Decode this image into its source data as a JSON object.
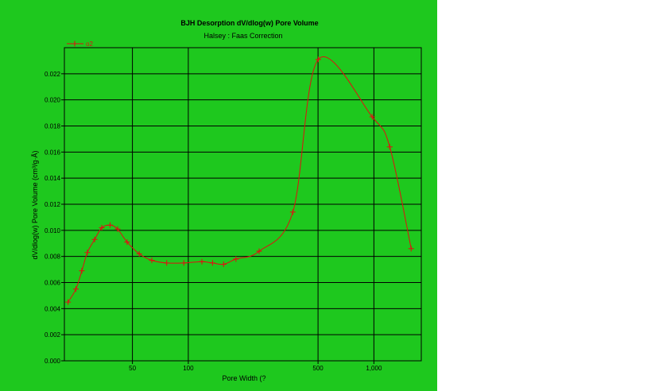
{
  "colors": {
    "background": "#1ec81e",
    "series": "#e01010",
    "grid": "#000000",
    "page": "#ffffff"
  },
  "chart_data": {
    "type": "line",
    "title": "BJH Desorption dV/dlog(w) Pore Volume",
    "subtitle": "Halsey : Faas Correction",
    "xlabel": "Pore Width (?",
    "ylabel": "dV/dlog(w) Pore Volume (cm³/g·Å)",
    "x_scale": "log",
    "xlim": [
      21.5,
      1800
    ],
    "ylim": [
      0,
      0.024
    ],
    "x_ticks": [
      {
        "value": 50,
        "label": "50"
      },
      {
        "value": 100,
        "label": "100"
      },
      {
        "value": 500,
        "label": "500"
      },
      {
        "value": 1000,
        "label": "1,000"
      }
    ],
    "x_grid": [
      50,
      100,
      500,
      1000
    ],
    "y_ticks": [
      {
        "value": 0.0,
        "label": "0.000"
      },
      {
        "value": 0.002,
        "label": "0.002"
      },
      {
        "value": 0.004,
        "label": "0.004"
      },
      {
        "value": 0.006,
        "label": "0.006"
      },
      {
        "value": 0.008,
        "label": "0.008"
      },
      {
        "value": 0.01,
        "label": "0.010"
      },
      {
        "value": 0.012,
        "label": "0.012"
      },
      {
        "value": 0.014,
        "label": "0.014"
      },
      {
        "value": 0.016,
        "label": "0.016"
      },
      {
        "value": 0.018,
        "label": "0.018"
      },
      {
        "value": 0.02,
        "label": "0.020"
      },
      {
        "value": 0.022,
        "label": "0.022"
      }
    ],
    "grid": true,
    "legend_position": "top-left",
    "series": [
      {
        "name": "o2",
        "points": [
          [
            22.5,
            0.0045
          ],
          [
            24.8,
            0.0055
          ],
          [
            26.7,
            0.0069
          ],
          [
            28.6,
            0.0083
          ],
          [
            31.3,
            0.0093
          ],
          [
            34.2,
            0.0102
          ],
          [
            37.9,
            0.0104
          ],
          [
            41.6,
            0.0101
          ],
          [
            46.8,
            0.0091
          ],
          [
            54.4,
            0.0082
          ],
          [
            63.6,
            0.0077
          ],
          [
            76.5,
            0.0075
          ],
          [
            94.6,
            0.0075
          ],
          [
            118.4,
            0.0076
          ],
          [
            135.1,
            0.0075
          ],
          [
            155.0,
            0.0074
          ],
          [
            180.6,
            0.0078
          ],
          [
            240.8,
            0.0084
          ],
          [
            365.7,
            0.0114
          ],
          [
            501.5,
            0.0231
          ],
          [
            979.0,
            0.0187
          ],
          [
            1217.0,
            0.0164
          ],
          [
            1588.0,
            0.0086
          ]
        ]
      }
    ]
  }
}
